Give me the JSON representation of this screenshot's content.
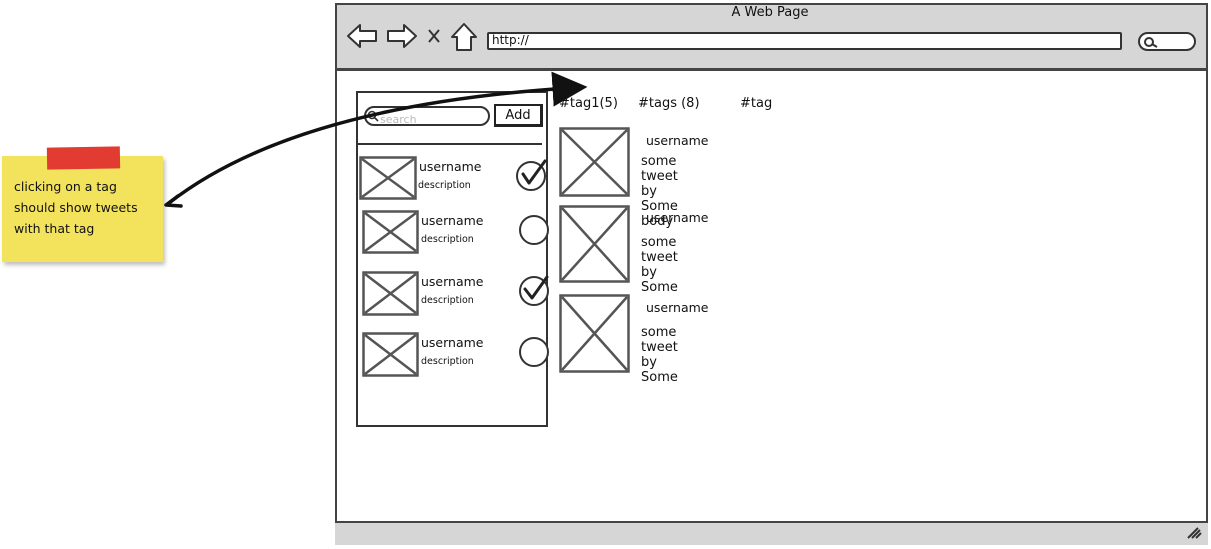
{
  "sticky_note": {
    "text": "clicking on a tag\nshould show tweets\nwith that tag"
  },
  "browser": {
    "title": "A Web Page",
    "url": "http://",
    "nav_icons": [
      "back-arrow-icon",
      "forward-arrow-icon",
      "close-icon",
      "home-icon",
      "search-icon"
    ]
  },
  "left_panel": {
    "search_placeholder": "search",
    "add_label": "Add",
    "users": [
      {
        "username": "username",
        "description": "description",
        "checked": true
      },
      {
        "username": "username",
        "description": "description",
        "checked": false
      },
      {
        "username": "username",
        "description": "description",
        "checked": true
      },
      {
        "username": "username",
        "description": "description",
        "checked": false
      }
    ]
  },
  "tags": [
    "#tag1(5)",
    "#tags (8)",
    "#tag"
  ],
  "tweets": [
    {
      "username": "username",
      "text": "some tweet by  Some body"
    },
    {
      "username": "username",
      "text": "some tweet by  Some"
    },
    {
      "username": "username",
      "text": "some tweet by  Some"
    }
  ]
}
